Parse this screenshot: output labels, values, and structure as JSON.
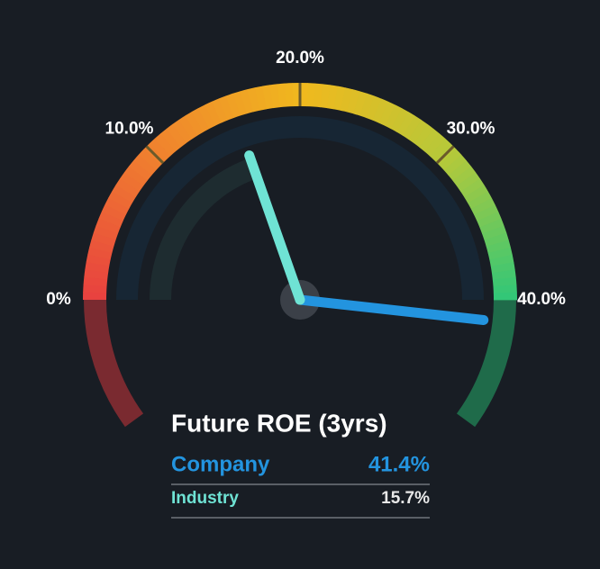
{
  "chart_data": {
    "type": "gauge",
    "title": "Future ROE (3yrs)",
    "ylim": [
      0,
      40
    ],
    "yticks": [
      {
        "value": 0,
        "label": "0%"
      },
      {
        "value": 10,
        "label": "10.0%"
      },
      {
        "value": 20,
        "label": "20.0%"
      },
      {
        "value": 30,
        "label": "30.0%"
      },
      {
        "value": 40,
        "label": "40.0%"
      }
    ],
    "series": [
      {
        "name": "Company",
        "color": "#2394df",
        "values": [
          41.4
        ],
        "value_labels": [
          "41.4%"
        ]
      },
      {
        "name": "Industry",
        "color": "#6fe3d4",
        "values": [
          15.7
        ],
        "value_labels": [
          "15.7%"
        ]
      }
    ]
  }
}
